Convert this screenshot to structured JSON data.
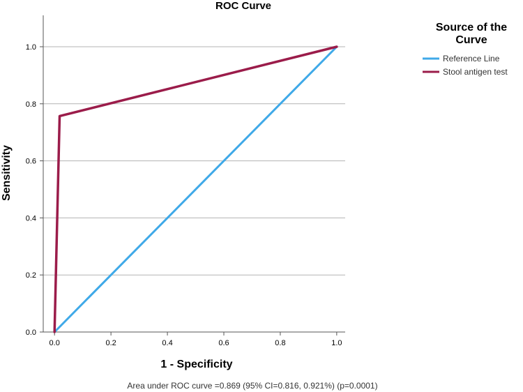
{
  "chart_data": {
    "type": "line",
    "title": "ROC Curve",
    "xlabel": "1 - Specificity",
    "ylabel": "Sensitivity",
    "xlim": [
      -0.04,
      1.03
    ],
    "ylim": [
      0.0,
      1.11
    ],
    "xticks": [
      0.0,
      0.2,
      0.4,
      0.6,
      0.8,
      1.0
    ],
    "xtick_labels": [
      "0.0",
      "0.2",
      "0.4",
      "0.6",
      "0.8",
      "1.0"
    ],
    "yticks": [
      0.0,
      0.2,
      0.4,
      0.6,
      0.8,
      1.0
    ],
    "ytick_labels": [
      "0.0",
      "0.2",
      "0.4",
      "0.6",
      "0.8",
      "1.0"
    ],
    "grid": "horizontal",
    "legend_title": "Source of the Curve",
    "legend_placement": "right",
    "series": [
      {
        "name": "Reference Line",
        "color": "#3fa9e8",
        "x": [
          0.0,
          1.0
        ],
        "y": [
          0.0,
          1.0
        ]
      },
      {
        "name": "Stool antigen test",
        "color": "#9b1c4a",
        "x": [
          0.0,
          0.018,
          1.0
        ],
        "y": [
          0.0,
          0.757,
          1.0
        ]
      }
    ],
    "annotation": "Area under ROC curve =0.869 (95% CI=0.816, 0.921%) (p=0.0001)"
  }
}
